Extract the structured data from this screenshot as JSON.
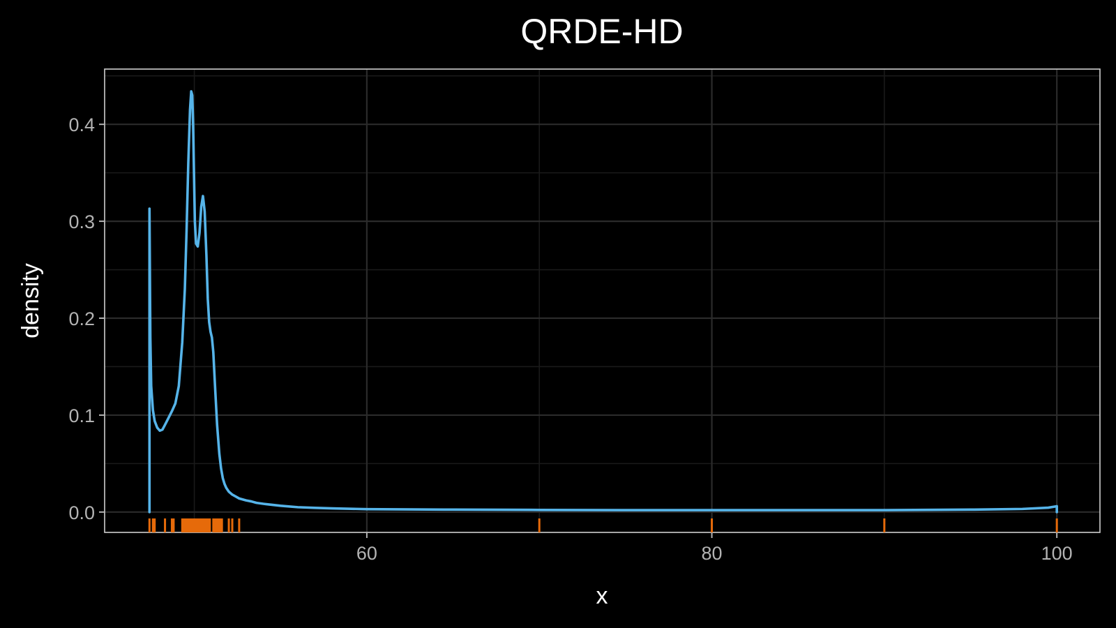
{
  "chart_data": {
    "type": "line",
    "title": "QRDE-HD",
    "xlabel": "x",
    "ylabel": "density",
    "xlim": [
      44.8,
      102.5
    ],
    "ylim": [
      -0.021,
      0.457
    ],
    "x_ticks": [
      60,
      80,
      100
    ],
    "x_tick_labels": [
      "60",
      "80",
      "100"
    ],
    "y_ticks": [
      0.0,
      0.1,
      0.2,
      0.3,
      0.4
    ],
    "y_tick_labels": [
      "0.0",
      "0.1",
      "0.2",
      "0.3",
      "0.4"
    ],
    "grid": true,
    "colors": {
      "background": "#000000",
      "line": "#56b4e9",
      "rug": "#e66a0a"
    },
    "series": [
      {
        "x": [
          47.4,
          47.4,
          47.45,
          47.5,
          47.6,
          47.7,
          47.85,
          48.0,
          48.15,
          48.3,
          48.5,
          48.7,
          48.9,
          49.1,
          49.3,
          49.45,
          49.55,
          49.65,
          49.75,
          49.82,
          49.88,
          49.93,
          49.98,
          50.03,
          50.1,
          50.2,
          50.3,
          50.4,
          50.5,
          50.6,
          50.7,
          50.78,
          50.86,
          50.94,
          51.02,
          51.1,
          51.2,
          51.32,
          51.45,
          51.55,
          51.65,
          51.75,
          51.85,
          52.0,
          52.2,
          52.4,
          52.6,
          52.8,
          53.0,
          53.3,
          53.6,
          54.0,
          54.5,
          55.0,
          56.0,
          57.0,
          58.0,
          60.0,
          65.0,
          70.0,
          75.0,
          80.0,
          85.0,
          90.0,
          95.0,
          98.0,
          99.5,
          100.0,
          100.0
        ],
        "y": [
          0.0,
          0.313,
          0.18,
          0.13,
          0.105,
          0.094,
          0.087,
          0.084,
          0.085,
          0.09,
          0.097,
          0.104,
          0.112,
          0.13,
          0.175,
          0.23,
          0.29,
          0.36,
          0.415,
          0.434,
          0.43,
          0.4,
          0.35,
          0.3,
          0.277,
          0.274,
          0.288,
          0.315,
          0.326,
          0.31,
          0.265,
          0.22,
          0.196,
          0.186,
          0.18,
          0.165,
          0.13,
          0.09,
          0.06,
          0.045,
          0.035,
          0.029,
          0.025,
          0.021,
          0.018,
          0.016,
          0.014,
          0.013,
          0.012,
          0.011,
          0.0095,
          0.0085,
          0.0075,
          0.0065,
          0.005,
          0.0043,
          0.0038,
          0.003,
          0.0025,
          0.0022,
          0.002,
          0.002,
          0.002,
          0.002,
          0.0025,
          0.0032,
          0.0045,
          0.006,
          0.0
        ]
      }
    ],
    "rug": [
      47.4,
      47.6,
      47.7,
      48.3,
      48.7,
      48.8,
      49.3,
      49.4,
      49.5,
      49.6,
      49.7,
      49.8,
      49.9,
      50.0,
      50.1,
      50.2,
      50.3,
      50.4,
      50.5,
      50.6,
      50.7,
      50.8,
      50.9,
      51.1,
      51.2,
      51.3,
      51.4,
      51.5,
      51.6,
      52.0,
      52.2,
      52.6,
      70.0,
      80.0,
      90.0,
      100.0
    ]
  }
}
